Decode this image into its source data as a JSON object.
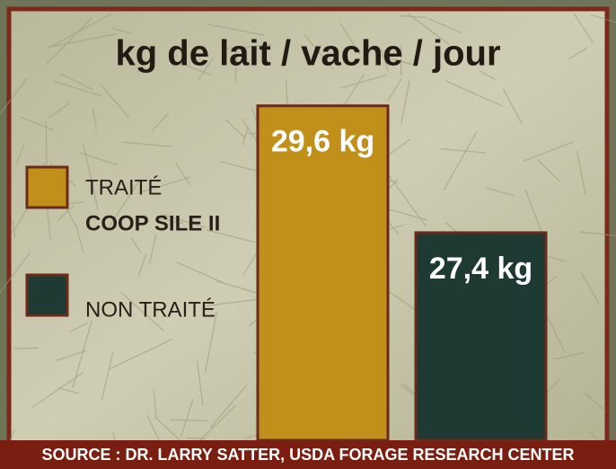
{
  "chart_data": {
    "type": "bar",
    "title": "kg de lait / vache / jour",
    "categories": [
      null
    ],
    "series": [
      {
        "name": "TRAITÉ",
        "name_detail": "COOP SILE II",
        "color": "#c1901a",
        "values": [
          29.6
        ],
        "value_labels": [
          "29,6 kg"
        ]
      },
      {
        "name": "NON TRAITÉ",
        "color": "#1f3a33",
        "values": [
          27.4
        ],
        "value_labels": [
          "27,4 kg"
        ]
      }
    ],
    "ylim": [
      23.8,
      30.5
    ],
    "source": "SOURCE : DR. LARRY SATTER, USDA FORAGE RESEARCH CENTER"
  }
}
